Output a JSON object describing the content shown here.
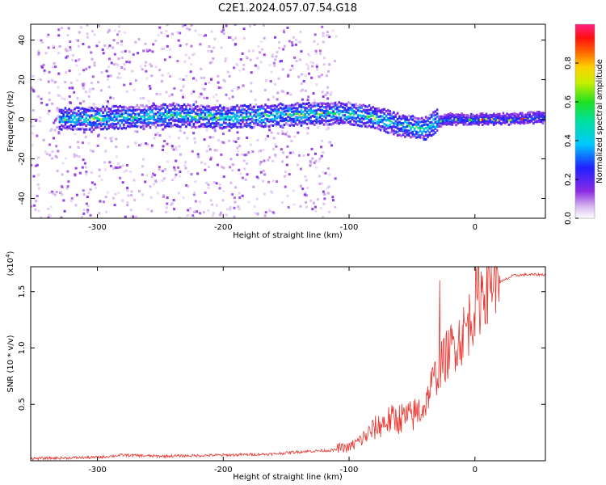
{
  "title": "C2E1.2024.057.07.54.G18",
  "chart_data": [
    {
      "type": "heatmap",
      "title": "C2E1.2024.057.07.54.G18",
      "xlabel": "Height of straight line (km)",
      "ylabel": "Frequency (Hz)",
      "xlim": [
        -353,
        56
      ],
      "ylim": [
        -50,
        48
      ],
      "xticks": [
        -300,
        -200,
        -100,
        0
      ],
      "yticks": [
        -40,
        -20,
        0,
        20,
        40
      ],
      "colorbar": {
        "label": "Normalized spectral amplitude",
        "range": [
          0,
          1
        ],
        "ticks": [
          "0.0",
          "0.2",
          "0.4",
          "0.6",
          "0.8"
        ],
        "colormap": "rainbow (white-violet-blue-cyan-green-yellow-red-magenta)"
      },
      "ridge": {
        "height_km": [
          -320,
          -280,
          -240,
          -200,
          -160,
          -120,
          -100,
          -80,
          -60,
          -40,
          -30,
          -20,
          0,
          20,
          56
        ],
        "frequency_hz": [
          0,
          1,
          2,
          1,
          2,
          3,
          3,
          1,
          -3,
          -5,
          -1,
          0,
          0,
          0,
          1
        ]
      }
    },
    {
      "type": "line",
      "xlabel": "Height of straight line (km)",
      "ylabel": "SNR (10 * v/v)",
      "y_multiplier": "(x10",
      "y_multiplier_exponent": "4",
      "y_multiplier_close": ")",
      "color": "#e8322c",
      "xlim": [
        -353,
        56
      ],
      "ylim": [
        0,
        17200
      ],
      "xticks": [
        -300,
        -200,
        -100,
        0
      ],
      "yticks": [
        5000,
        10000,
        15000
      ],
      "ytick_labels": [
        "0.5",
        "1.0",
        "1.5"
      ],
      "series": [
        {
          "name": "SNR",
          "x": [
            -353,
            -300,
            -280,
            -250,
            -200,
            -160,
            -140,
            -120,
            -100,
            -90,
            -80,
            -70,
            -60,
            -50,
            -40,
            -35,
            -30,
            -25,
            -20,
            -15,
            -10,
            -5,
            0,
            10,
            20,
            30,
            40,
            56
          ],
          "y": [
            200,
            300,
            500,
            400,
            500,
            600,
            800,
            900,
            1000,
            1600,
            2400,
            3000,
            3200,
            3300,
            4200,
            6000,
            7000,
            8000,
            8800,
            9500,
            10000,
            11000,
            12500,
            14500,
            15800,
            16400,
            16500,
            16500
          ]
        }
      ],
      "spike_x_km": -28,
      "spike_y": 16000
    }
  ]
}
